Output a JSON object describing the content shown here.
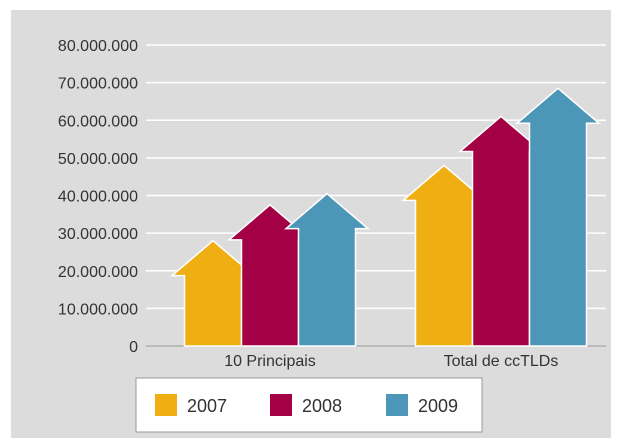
{
  "chart_data": {
    "type": "bar",
    "categories": [
      "10 Principais",
      "Total de ccTLDs"
    ],
    "series": [
      {
        "name": "2007",
        "values": [
          28000000,
          48000000
        ],
        "color": "#EFAE11"
      },
      {
        "name": "2008",
        "values": [
          37500000,
          61000000
        ],
        "color": "#A30046"
      },
      {
        "name": "2009",
        "values": [
          40500000,
          68500000
        ],
        "color": "#4C97B8"
      }
    ],
    "ylim": [
      0,
      80000000
    ],
    "y_ticks": [
      {
        "value": 0,
        "label": "0"
      },
      {
        "value": 10000000,
        "label": "10.000.000"
      },
      {
        "value": 20000000,
        "label": "20.000.000"
      },
      {
        "value": 30000000,
        "label": "30.000.000"
      },
      {
        "value": 40000000,
        "label": "40.000.000"
      },
      {
        "value": 50000000,
        "label": "50.000.000"
      },
      {
        "value": 60000000,
        "label": "60.000.000"
      },
      {
        "value": 70000000,
        "label": "70.000.000"
      },
      {
        "value": 80000000,
        "label": "80.000.000"
      }
    ],
    "grid": true,
    "legend": "bottom",
    "background_color": "#DCDCDD"
  }
}
